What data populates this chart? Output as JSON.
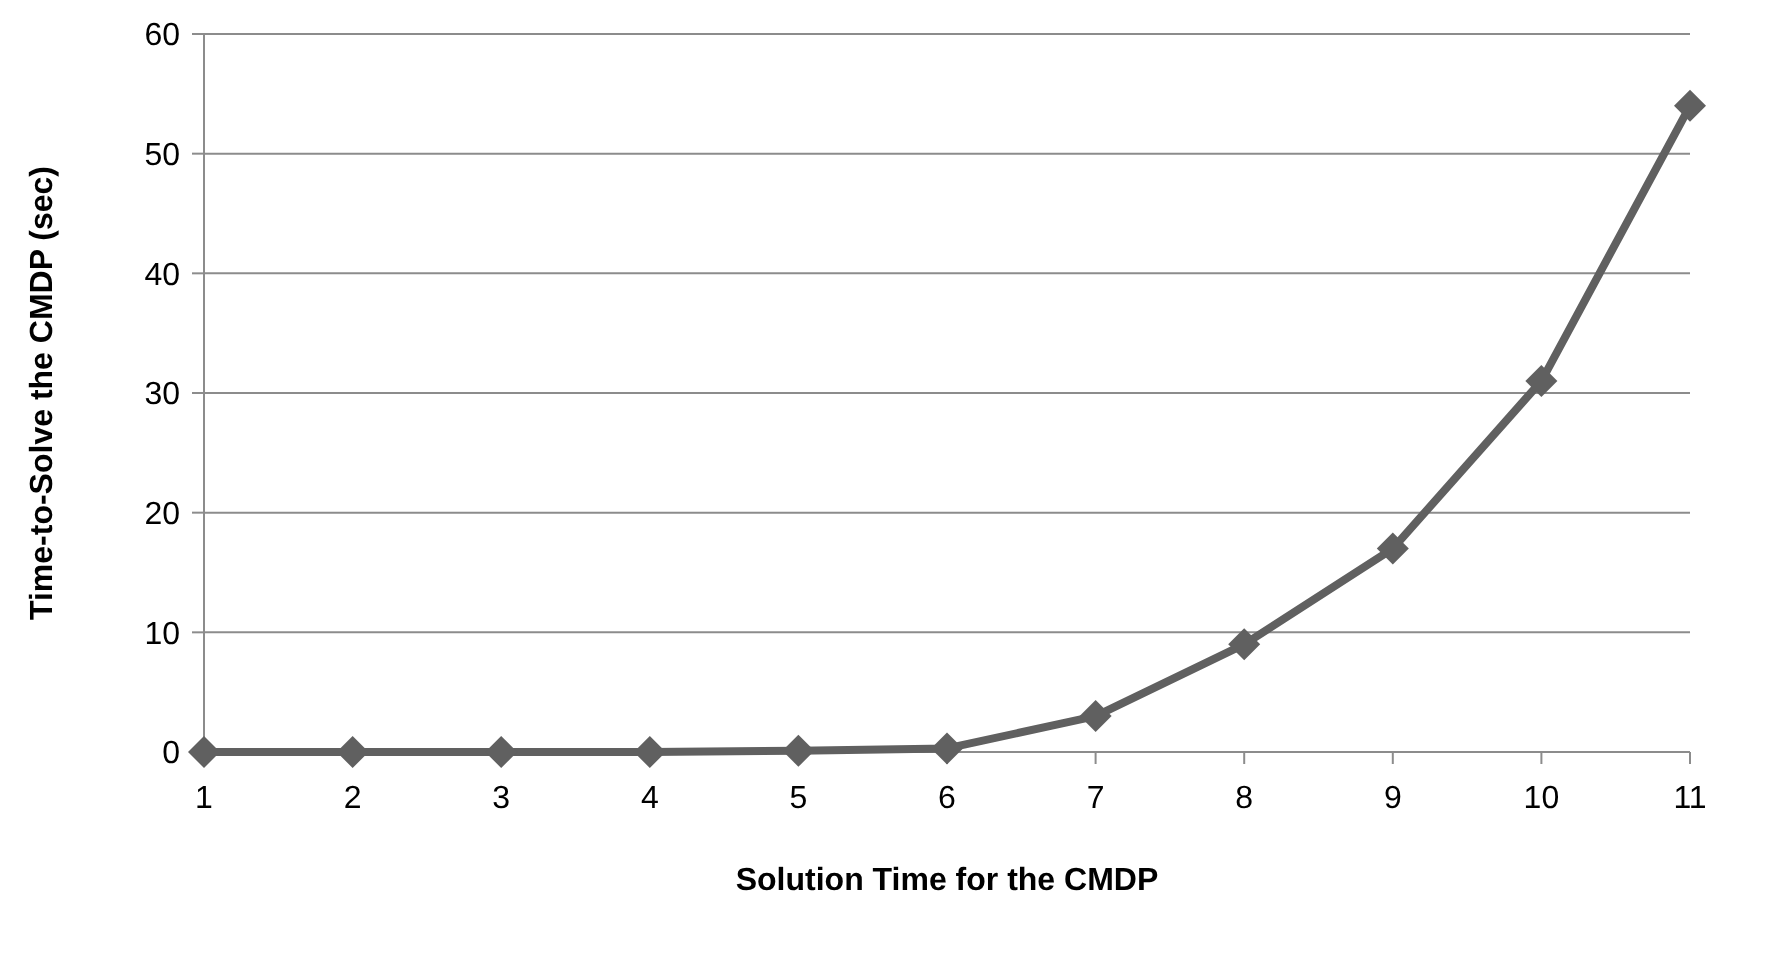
{
  "chart_data": {
    "type": "line",
    "xlabel": "Solution Time for the CMDP",
    "ylabel": "Time-to-Solve the CMDP (sec)",
    "categories": [
      "1",
      "2",
      "3",
      "4",
      "5",
      "6",
      "7",
      "8",
      "9",
      "10",
      "11"
    ],
    "series": [
      {
        "color": "#606060",
        "values": [
          0,
          0,
          0,
          0,
          0.1,
          0.3,
          3,
          9,
          17,
          31,
          54
        ]
      }
    ],
    "ylim": [
      0,
      60
    ],
    "yticks": [
      0,
      10,
      20,
      30,
      40,
      50,
      60
    ],
    "grid": "y",
    "marker": "diamond",
    "line_style": "solid"
  }
}
